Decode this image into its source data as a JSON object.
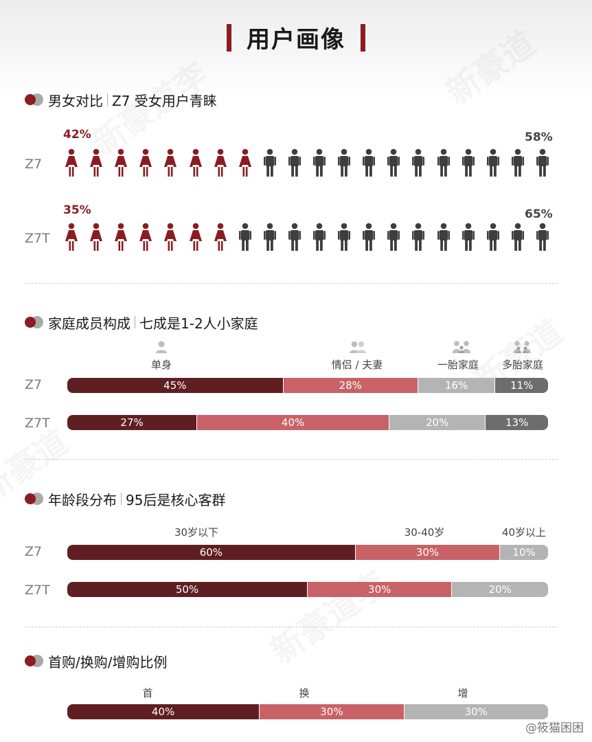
{
  "title": "用户画像",
  "colors": {
    "deep_red": "#5f1f22",
    "red": "#8b1c22",
    "pink": "#c86266",
    "light_gray": "#b4b4b4",
    "dark_gray": "#6d6d6d",
    "person_dark": "#3e3e3e"
  },
  "sections": {
    "gender": {
      "title": "男女对比",
      "subtitle": "Z7 受女用户青睐"
    },
    "family": {
      "title": "家庭成员构成",
      "subtitle": "七成是1-2人小家庭"
    },
    "age": {
      "title": "年龄段分布",
      "subtitle": "95后是核心客群"
    },
    "purchase": {
      "title": "首购/换购/增购比例",
      "subtitle": ""
    }
  },
  "credit": "@筱猫困困",
  "chart_data": [
    {
      "type": "pictograph",
      "categories": [
        "Z7",
        "Z7T"
      ],
      "series": [
        {
          "name": "女",
          "values": [
            42,
            35
          ],
          "labels": [
            "42%",
            "35%"
          ]
        },
        {
          "name": "男",
          "values": [
            58,
            65
          ],
          "labels": [
            "58%",
            "65%"
          ]
        }
      ],
      "icons_total": 20,
      "female_icons": [
        8,
        7
      ]
    },
    {
      "type": "bar",
      "stacked": true,
      "categories": [
        "Z7",
        "Z7T"
      ],
      "series": [
        {
          "name": "单身",
          "values": [
            45,
            27
          ],
          "labels": [
            "45%",
            "27%"
          ]
        },
        {
          "name": "情侣 / 夫妻",
          "values": [
            28,
            40
          ],
          "labels": [
            "28%",
            "40%"
          ]
        },
        {
          "name": "一胎家庭",
          "values": [
            16,
            20
          ],
          "labels": [
            "16%",
            "20%"
          ]
        },
        {
          "name": "多胎家庭",
          "values": [
            11,
            13
          ],
          "labels": [
            "11%",
            "13%"
          ]
        }
      ]
    },
    {
      "type": "bar",
      "stacked": true,
      "categories": [
        "Z7",
        "Z7T"
      ],
      "series": [
        {
          "name": "30岁以下",
          "values": [
            60,
            50
          ],
          "labels": [
            "60%",
            "50%"
          ]
        },
        {
          "name": "30-40岁",
          "values": [
            30,
            30
          ],
          "labels": [
            "30%",
            "30%"
          ]
        },
        {
          "name": "40岁以上",
          "values": [
            10,
            20
          ],
          "labels": [
            "10%",
            "20%"
          ]
        }
      ]
    },
    {
      "type": "bar",
      "stacked": true,
      "categories": [
        ""
      ],
      "series": [
        {
          "name": "首",
          "values": [
            40
          ],
          "labels": [
            "40%"
          ]
        },
        {
          "name": "换",
          "values": [
            30
          ],
          "labels": [
            "30%"
          ]
        },
        {
          "name": "增",
          "values": [
            30
          ],
          "labels": [
            "30%"
          ]
        }
      ]
    }
  ]
}
